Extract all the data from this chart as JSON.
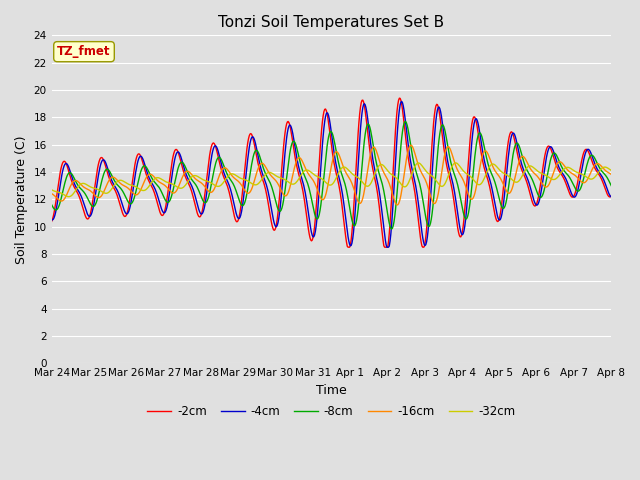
{
  "title": "Tonzi Soil Temperatures Set B",
  "xlabel": "Time",
  "ylabel": "Soil Temperature (C)",
  "ylim": [
    0,
    24
  ],
  "yticks": [
    0,
    2,
    4,
    6,
    8,
    10,
    12,
    14,
    16,
    18,
    20,
    22,
    24
  ],
  "bg_color": "#e0e0e0",
  "plot_bg_color": "#e0e0e0",
  "grid_color": "#ffffff",
  "series_colors": [
    "#ff0000",
    "#0000cc",
    "#00aa00",
    "#ff8800",
    "#cccc00"
  ],
  "series_labels": [
    "-2cm",
    "-4cm",
    "-8cm",
    "-16cm",
    "-32cm"
  ],
  "annotation_text": "TZ_fmet",
  "annotation_color": "#cc0000",
  "annotation_bg": "#ffffcc",
  "x_tick_labels": [
    "Mar 24",
    "Mar 25",
    "Mar 26",
    "Mar 27",
    "Mar 28",
    "Mar 29",
    "Mar 30",
    "Mar 31",
    "Apr 1",
    "Apr 2",
    "Apr 3",
    "Apr 4",
    "Apr 5",
    "Apr 6",
    "Apr 7",
    "Apr 8"
  ],
  "x_tick_positions": [
    0,
    1,
    2,
    3,
    4,
    5,
    6,
    7,
    8,
    9,
    10,
    11,
    12,
    13,
    14,
    15
  ],
  "line_width": 1.0
}
